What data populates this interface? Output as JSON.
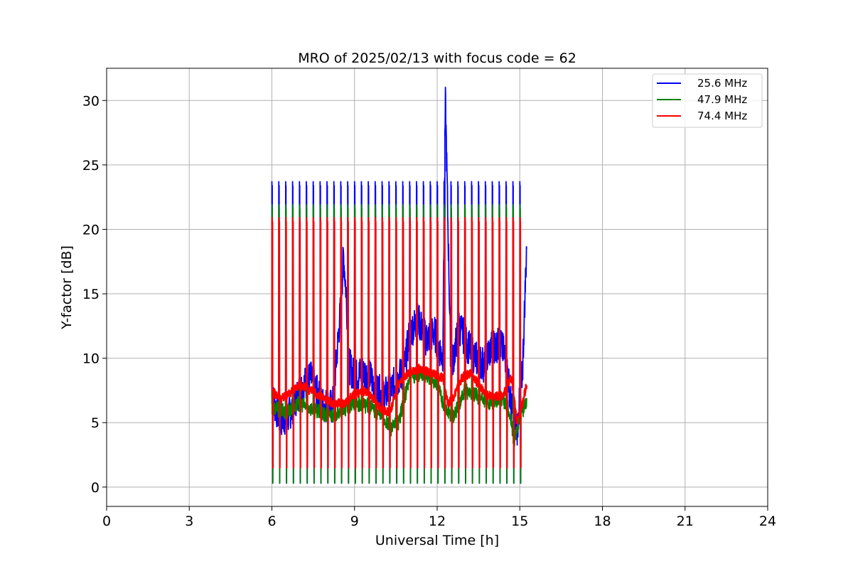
{
  "chart_data": {
    "type": "line",
    "title": "MRO of 2025/02/13 with focus code = 62",
    "xlabel": "Universal Time [h]",
    "ylabel": "Y-factor [dB]",
    "xlim": [
      0,
      24
    ],
    "ylim": [
      -1.5,
      32.5
    ],
    "xticks": [
      0,
      3,
      6,
      9,
      12,
      15,
      18,
      21,
      24
    ],
    "yticks": [
      0,
      5,
      10,
      15,
      20,
      25,
      30
    ],
    "grid": true,
    "legend_position": "top-right",
    "time_range_hours": [
      6.0,
      15.25
    ],
    "pulse_start_hours": [
      6.0,
      6.25,
      6.5,
      6.75,
      7.0,
      7.25,
      7.5,
      7.75,
      8.0,
      8.25,
      8.5,
      8.75,
      9.0,
      9.25,
      9.5,
      9.75,
      10.0,
      10.25,
      10.5,
      10.75,
      11.0,
      11.25,
      11.5,
      11.75,
      12.0,
      12.25,
      12.5,
      12.75,
      13.0,
      13.25,
      13.5,
      13.75,
      14.0,
      14.25,
      14.5,
      14.75,
      15.0
    ],
    "series": [
      {
        "name": "25.6 MHz",
        "color": "#0000ff",
        "calibration_high_db": 23.7,
        "calibration_low_db": 0.3,
        "baseline_hours": [
          6.0,
          6.3,
          6.6,
          7.0,
          7.4,
          7.8,
          8.2,
          8.5,
          8.6,
          8.7,
          8.8,
          9.0,
          9.3,
          9.6,
          10.0,
          10.3,
          10.6,
          10.8,
          11.0,
          11.3,
          11.6,
          11.9,
          12.2,
          12.3,
          12.5,
          12.8,
          13.1,
          13.4,
          13.7,
          14.0,
          14.3,
          14.5,
          14.7,
          14.9,
          15.1,
          15.25
        ],
        "baseline_values": [
          7.0,
          5.2,
          5.5,
          7.5,
          8.5,
          6.5,
          6.2,
          14.0,
          18.0,
          15.0,
          9.5,
          8.5,
          9.0,
          8.5,
          7.0,
          7.5,
          8.5,
          9.0,
          12.0,
          13.0,
          11.5,
          12.0,
          10.0,
          30.0,
          9.0,
          12.5,
          11.0,
          10.0,
          9.5,
          11.0,
          11.0,
          10.0,
          6.0,
          4.5,
          9.0,
          19.0
        ]
      },
      {
        "name": "47.9 MHz",
        "color": "#008000",
        "calibration_high_db": 21.9,
        "calibration_low_db": 0.3,
        "baseline_hours": [
          6.0,
          6.5,
          7.0,
          7.5,
          8.0,
          8.5,
          9.0,
          9.5,
          10.0,
          10.3,
          10.6,
          11.0,
          11.5,
          12.0,
          12.3,
          12.6,
          13.0,
          13.5,
          14.0,
          14.3,
          14.6,
          14.8,
          15.0,
          15.25
        ],
        "baseline_values": [
          6.2,
          5.8,
          6.5,
          6.0,
          5.5,
          5.8,
          6.5,
          6.3,
          5.5,
          4.5,
          5.0,
          8.5,
          8.8,
          8.0,
          6.0,
          5.5,
          7.5,
          7.0,
          6.5,
          7.0,
          6.0,
          3.5,
          5.5,
          6.5
        ]
      },
      {
        "name": "74.4 MHz",
        "color": "#ff0000",
        "calibration_high_db": 20.9,
        "calibration_low_db": 1.5,
        "baseline_hours": [
          6.0,
          6.3,
          6.6,
          7.0,
          7.4,
          7.8,
          8.2,
          8.6,
          9.0,
          9.3,
          9.6,
          10.0,
          10.3,
          10.6,
          11.0,
          11.4,
          11.8,
          12.2,
          12.4,
          12.6,
          12.9,
          13.2,
          13.5,
          13.8,
          14.1,
          14.4,
          14.7,
          14.9,
          15.1,
          15.25
        ],
        "baseline_values": [
          7.5,
          6.8,
          7.2,
          8.0,
          7.5,
          7.0,
          6.5,
          6.5,
          7.2,
          7.5,
          7.0,
          6.0,
          5.8,
          8.0,
          9.0,
          9.2,
          8.8,
          8.5,
          6.5,
          7.0,
          8.5,
          8.8,
          8.0,
          7.2,
          7.0,
          7.2,
          8.5,
          5.0,
          6.5,
          8.0
        ]
      }
    ]
  }
}
